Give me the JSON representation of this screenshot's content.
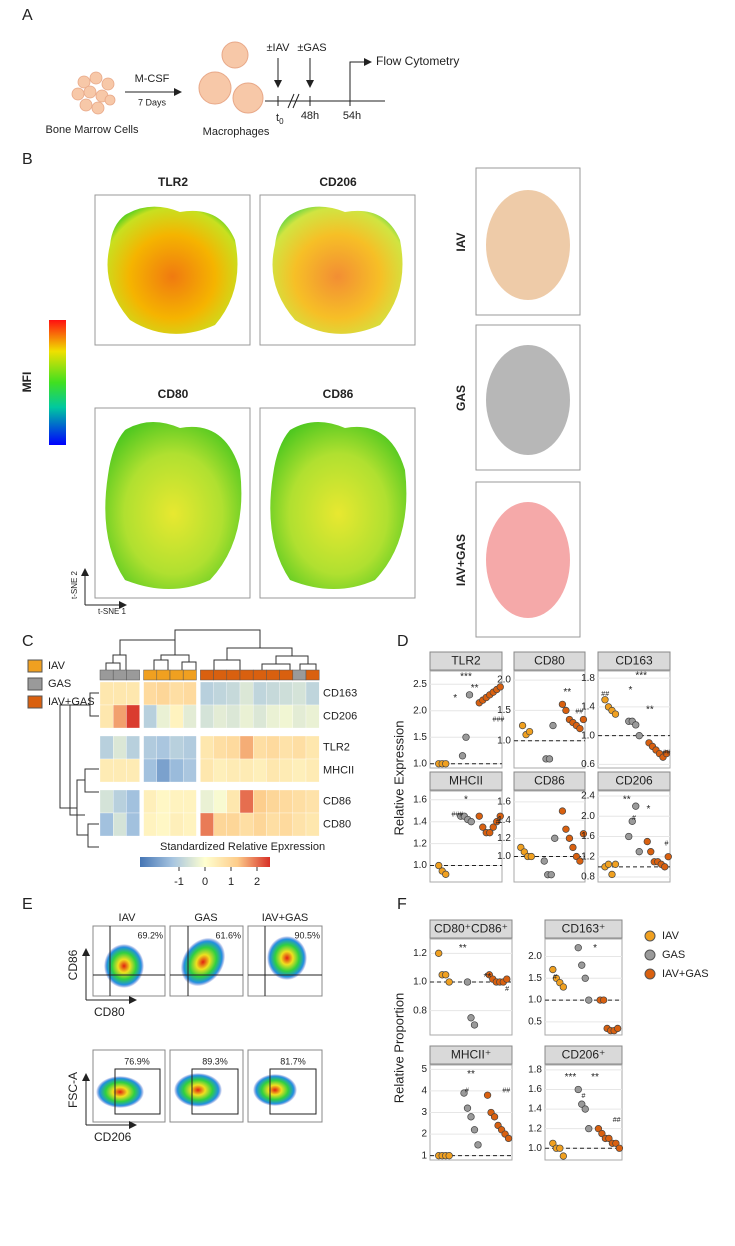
{
  "panel_labels": [
    "A",
    "B",
    "C",
    "D",
    "E",
    "F"
  ],
  "schematic": {
    "m_csf": "M-CSF",
    "days": "7 Days",
    "bone_marrow": "Bone Marrow Cells",
    "macrophages": "Macrophages",
    "iav": "±IAV",
    "gas": "±GAS",
    "t0": "t",
    "t0_sub": "0",
    "h48": "48h",
    "h54": "54h",
    "flow": "Flow Cytometry"
  },
  "tsne": {
    "markers": [
      "TLR2",
      "CD206",
      "CD80",
      "CD86"
    ],
    "mfi": "MFI",
    "conditions": [
      "IAV",
      "GAS",
      "IAV+GAS"
    ],
    "axis1": "t-SNE 1",
    "axis2": "t-SNE 2"
  },
  "heatmap_legend": [
    {
      "name": "IAV",
      "color": "#f0a020"
    },
    {
      "name": "GAS",
      "color": "#9a9a9a"
    },
    {
      "name": "IAV+GAS",
      "color": "#d9600f"
    }
  ],
  "panel_d": {
    "ylabel": "Relative Expression"
  },
  "flow": {
    "conditions": [
      "IAV",
      "GAS",
      "IAV+GAS"
    ],
    "top": {
      "ylabel": "CD86",
      "xlabel": "CD80",
      "percent": [
        "69.2%",
        "61.6%",
        "90.5%"
      ]
    },
    "bottom": {
      "ylabel": "FSC-A",
      "xlabel": "CD206",
      "percent": [
        "76.9%",
        "89.3%",
        "81.7%"
      ]
    }
  },
  "panel_f": {
    "ylabel": "Relative Proportion",
    "legend": [
      {
        "name": "IAV",
        "color": "#f0a020"
      },
      {
        "name": "GAS",
        "color": "#9a9a9a"
      },
      {
        "name": "IAV+GAS",
        "color": "#d9600f"
      }
    ]
  },
  "chart_data": [
    {
      "type": "heatmap",
      "rows": [
        "CD163",
        "CD206",
        "TLR2",
        "MHCII",
        "CD86",
        "CD80"
      ],
      "column_colors": [
        "#9a9a9a",
        "#9a9a9a",
        "#9a9a9a",
        "#f0a020",
        "#f0a020",
        "#f0a020",
        "#f0a020",
        "#d9600f",
        "#d9600f",
        "#d9600f",
        "#d9600f",
        "#d9600f",
        "#d9600f",
        "#d9600f",
        "#9a9a9a",
        "#d9600f"
      ],
      "values": [
        [
          0.6,
          0.6,
          0.6,
          0.9,
          1.0,
          0.8,
          0.9,
          -1.0,
          -0.9,
          -0.8,
          -0.5,
          -0.9,
          -0.8,
          -0.7,
          -0.6,
          -0.9
        ],
        [
          0.6,
          1.6,
          2.4,
          -1.0,
          -0.3,
          0.3,
          -0.4,
          -0.6,
          -0.4,
          -0.5,
          -0.3,
          -0.5,
          -0.3,
          -0.2,
          -0.4,
          -0.3
        ],
        [
          -1.0,
          -0.5,
          -1.0,
          -1.1,
          -1.2,
          -1.0,
          -1.1,
          0.6,
          0.8,
          0.9,
          1.5,
          0.8,
          0.9,
          0.7,
          0.8,
          0.6
        ],
        [
          0.5,
          0.5,
          0.5,
          -1.3,
          -1.8,
          -1.4,
          -1.2,
          0.6,
          0.4,
          0.5,
          0.5,
          0.4,
          0.6,
          0.5,
          0.4,
          0.5
        ],
        [
          -0.6,
          -1.0,
          -1.3,
          0.4,
          0.2,
          0.3,
          0.3,
          -0.3,
          -0.1,
          0.6,
          2.0,
          1.2,
          1.0,
          0.9,
          0.8,
          0.7
        ],
        [
          -1.3,
          -0.6,
          -1.3,
          0.3,
          0.2,
          0.4,
          0.3,
          1.9,
          1.0,
          1.0,
          0.8,
          1.0,
          0.8,
          0.9,
          0.7,
          0.6
        ]
      ],
      "clim": [
        -2.5,
        2.5
      ],
      "colormap": [
        "#4575b4",
        "#a6c4e0",
        "#ffffd0",
        "#fdcc8a",
        "#d73027"
      ],
      "colorbar_ticks": [
        -1,
        0,
        1,
        2
      ],
      "colorbar_label": "Standardized Relative Epxression"
    },
    {
      "type": "dotplot",
      "title": "TLR2",
      "ylim": [
        0.92,
        2.75
      ],
      "hline": 1,
      "yticks": [
        {
          "value": 1,
          "label": "1.0"
        },
        1.5,
        {
          "value": 2,
          "label": "2.0"
        },
        2.5
      ],
      "series": [
        {
          "color": "#f0a020",
          "values": [
            1.0,
            1.0,
            1.0
          ]
        },
        {
          "color": "#9a9a9a",
          "values": [
            1.15,
            1.5,
            2.3
          ]
        },
        {
          "color": "#d9600f",
          "values": [
            2.15,
            2.2,
            2.25,
            2.3,
            2.35,
            2.4,
            2.45
          ]
        }
      ],
      "annotations": [
        "***",
        "**",
        "*",
        "###"
      ]
    },
    {
      "type": "dotplot",
      "title": "CD80",
      "ylim": [
        0.55,
        2.15
      ],
      "hline": 1,
      "yticks": [
        {
          "value": 1,
          "label": "1.0"
        },
        1.5,
        {
          "value": 2,
          "label": "2.0"
        }
      ],
      "series": [
        {
          "color": "#f0a020",
          "values": [
            1.25,
            1.1,
            1.15
          ]
        },
        {
          "color": "#9a9a9a",
          "values": [
            0.7,
            0.7,
            1.25
          ]
        },
        {
          "color": "#d9600f",
          "values": [
            1.6,
            1.5,
            1.35,
            1.3,
            1.25,
            1.2,
            1.35
          ]
        }
      ],
      "annotations": [
        "**",
        "##"
      ]
    },
    {
      "type": "dotplot",
      "title": "CD163",
      "ylim": [
        0.55,
        1.9
      ],
      "hline": 1,
      "yticks": [
        0.6,
        {
          "value": 1,
          "label": "1.0"
        },
        1.4,
        1.8
      ],
      "series": [
        {
          "color": "#f0a020",
          "values": [
            1.5,
            1.4,
            1.35,
            1.3
          ]
        },
        {
          "color": "#9a9a9a",
          "values": [
            1.2,
            1.2,
            1.15,
            1.0
          ]
        },
        {
          "color": "#d9600f",
          "values": [
            0.9,
            0.85,
            0.8,
            0.75,
            0.7,
            0.75
          ]
        }
      ],
      "annotations": [
        "***",
        "*",
        "**",
        "##",
        "##"
      ]
    },
    {
      "type": "dotplot",
      "title": "MHCII",
      "ylim": [
        0.85,
        1.68
      ],
      "hline": 1,
      "yticks": [
        {
          "value": 1,
          "label": "1.0"
        },
        1.2,
        1.4,
        1.6
      ],
      "series": [
        {
          "color": "#f0a020",
          "values": [
            1.0,
            0.95,
            0.92
          ]
        },
        {
          "color": "#9a9a9a",
          "values": [
            1.45,
            1.45,
            1.42,
            1.4
          ]
        },
        {
          "color": "#d9600f",
          "values": [
            1.45,
            1.35,
            1.3,
            1.3,
            1.35,
            1.4,
            1.45
          ]
        }
      ],
      "annotations": [
        "*",
        "###",
        "#"
      ]
    },
    {
      "type": "dotplot",
      "title": "CD86",
      "ylim": [
        0.72,
        1.72
      ],
      "hline": 1,
      "yticks": [
        {
          "value": 1,
          "label": "1.0"
        },
        1.2,
        1.4,
        1.6
      ],
      "series": [
        {
          "color": "#f0a020",
          "values": [
            1.1,
            1.05,
            1.0,
            1.0
          ]
        },
        {
          "color": "#9a9a9a",
          "values": [
            0.95,
            0.8,
            0.8,
            1.2
          ]
        },
        {
          "color": "#d9600f",
          "values": [
            1.5,
            1.3,
            1.2,
            1.1,
            1.0,
            0.95,
            1.25
          ]
        }
      ],
      "annotations": []
    },
    {
      "type": "dotplot",
      "title": "CD206",
      "ylim": [
        0.7,
        2.5
      ],
      "hline": 1,
      "yticks": [
        0.8,
        1.2,
        1.6,
        {
          "value": 2,
          "label": "2.0"
        },
        2.4
      ],
      "series": [
        {
          "color": "#f0a020",
          "values": [
            1.0,
            1.05,
            0.85,
            1.05
          ]
        },
        {
          "color": "#9a9a9a",
          "values": [
            1.6,
            1.9,
            2.2,
            1.3
          ]
        },
        {
          "color": "#d9600f",
          "values": [
            1.5,
            1.3,
            1.1,
            1.1,
            1.05,
            1.0,
            1.2
          ]
        }
      ],
      "annotations": [
        "**",
        "*",
        "#",
        "#"
      ]
    },
    {
      "type": "dotplot",
      "title": "CD80⁺CD86⁺",
      "ylim": [
        0.63,
        1.3
      ],
      "hline": 1,
      "yticks": [
        0.8,
        {
          "value": 1,
          "label": "1.0"
        },
        1.2
      ],
      "series": [
        {
          "color": "#f0a020",
          "values": [
            1.2,
            1.05,
            1.05,
            1.0
          ]
        },
        {
          "color": "#9a9a9a",
          "values": [
            1.0,
            0.75,
            0.7
          ]
        },
        {
          "color": "#d9600f",
          "values": [
            1.05,
            1.02,
            1.0,
            1.0,
            1.0,
            1.02
          ]
        }
      ],
      "annotations": [
        "**",
        "**",
        "#"
      ]
    },
    {
      "type": "dotplot",
      "title": "CD163⁺",
      "ylim": [
        0.2,
        2.4
      ],
      "hline": 1,
      "yticks": [
        0.5,
        {
          "value": 1,
          "label": "1.0"
        },
        1.5,
        {
          "value": 2,
          "label": "2.0"
        }
      ],
      "series": [
        {
          "color": "#f0a020",
          "values": [
            1.7,
            1.5,
            1.4,
            1.3
          ]
        },
        {
          "color": "#9a9a9a",
          "values": [
            2.2,
            1.8,
            1.5,
            1.0
          ]
        },
        {
          "color": "#d9600f",
          "values": [
            1.0,
            1.0,
            0.35,
            0.3,
            0.3,
            0.35
          ]
        }
      ],
      "annotations": [
        "*",
        "#"
      ]
    },
    {
      "type": "dotplot",
      "title": "MHCII⁺",
      "ylim": [
        0.8,
        5.2
      ],
      "hline": 1,
      "yticks": [
        1,
        2,
        3,
        4,
        5
      ],
      "series": [
        {
          "color": "#f0a020",
          "values": [
            1,
            1,
            1,
            1
          ]
        },
        {
          "color": "#9a9a9a",
          "values": [
            3.9,
            3.2,
            2.8,
            2.2,
            1.5
          ]
        },
        {
          "color": "#d9600f",
          "values": [
            3.8,
            3.0,
            2.8,
            2.4,
            2.2,
            2.0,
            1.8
          ]
        }
      ],
      "annotations": [
        "**",
        "#",
        "##"
      ]
    },
    {
      "type": "dotplot",
      "title": "CD206⁺",
      "ylim": [
        0.88,
        1.85
      ],
      "hline": 1,
      "yticks": [
        {
          "value": 1,
          "label": "1.0"
        },
        1.2,
        1.4,
        1.6,
        1.8
      ],
      "series": [
        {
          "color": "#f0a020",
          "values": [
            1.05,
            1.0,
            1.0,
            0.92
          ]
        },
        {
          "color": "#9a9a9a",
          "values": [
            1.6,
            1.45,
            1.4,
            1.2
          ]
        },
        {
          "color": "#d9600f",
          "values": [
            1.2,
            1.15,
            1.1,
            1.1,
            1.05,
            1.05,
            1.0
          ]
        }
      ],
      "annotations": [
        "***",
        "**",
        "#",
        "##"
      ]
    }
  ]
}
